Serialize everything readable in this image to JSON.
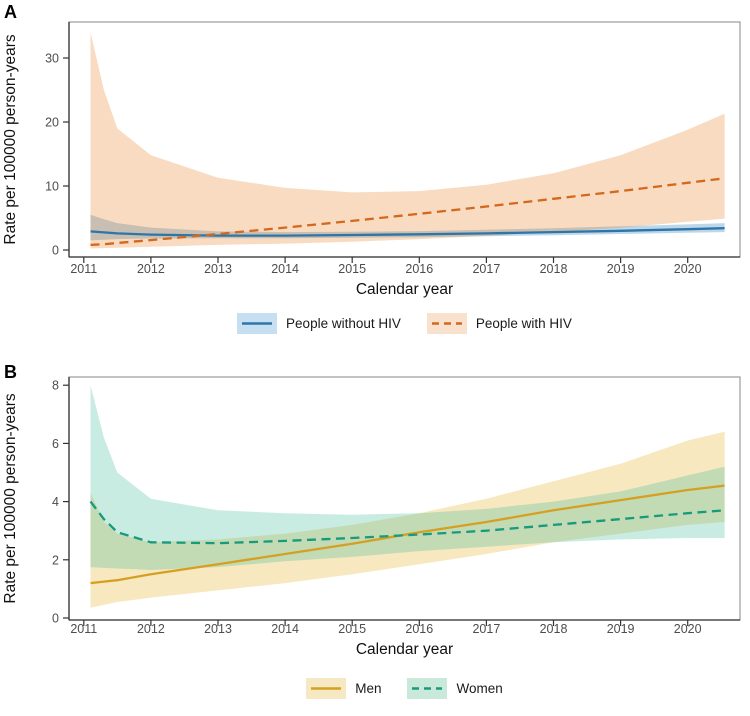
{
  "chart_data": [
    {
      "type": "line",
      "label": "A",
      "xlabel": "Calendar year",
      "ylabel": "Rate per 100000 person-years",
      "xlim": [
        2011,
        2020.6
      ],
      "ylim": [
        0,
        35
      ],
      "xticks": [
        2011,
        2012,
        2013,
        2014,
        2015,
        2016,
        2017,
        2018,
        2019,
        2020
      ],
      "yticks": [
        0,
        10,
        20,
        30
      ],
      "grid": false,
      "legend_position": "bottom",
      "x": [
        2011.1,
        2011.3,
        2011.5,
        2012,
        2013,
        2014,
        2015,
        2016,
        2017,
        2018,
        2019,
        2020,
        2020.55
      ],
      "series": [
        {
          "name": "People without HIV",
          "line_style": "solid",
          "color": "#2e75a8",
          "band_color": "rgba(49,130,189,0.32)",
          "band_legend": "#c6e0f1",
          "values": [
            2.9,
            2.75,
            2.6,
            2.4,
            2.25,
            2.25,
            2.35,
            2.45,
            2.6,
            2.8,
            3.0,
            3.25,
            3.4
          ],
          "lower": [
            1.5,
            1.6,
            1.7,
            1.8,
            1.85,
            1.85,
            1.9,
            2.0,
            2.15,
            2.3,
            2.5,
            2.7,
            2.8
          ],
          "upper": [
            5.5,
            4.8,
            4.2,
            3.5,
            2.9,
            2.8,
            2.85,
            2.95,
            3.15,
            3.4,
            3.7,
            4.0,
            4.2
          ]
        },
        {
          "name": "People with HIV",
          "line_style": "dashed",
          "color": "#d2691e",
          "band_color": "rgba(230,126,34,0.28)",
          "band_legend": "#f8e1cd",
          "values": [
            0.8,
            0.9,
            1.1,
            1.55,
            2.5,
            3.5,
            4.55,
            5.65,
            6.8,
            8.0,
            9.2,
            10.5,
            11.2
          ],
          "lower": [
            0.25,
            0.3,
            0.35,
            0.5,
            0.8,
            1.0,
            1.3,
            1.7,
            2.2,
            2.8,
            3.5,
            4.4,
            4.9
          ],
          "upper": [
            34.0,
            25.0,
            19.0,
            14.8,
            11.3,
            9.7,
            9.0,
            9.2,
            10.2,
            12.0,
            14.8,
            18.8,
            21.3
          ]
        }
      ]
    },
    {
      "type": "line",
      "label": "B",
      "xlabel": "Calendar year",
      "ylabel": "Rate per 100000 person-years",
      "xlim": [
        2011,
        2020.6
      ],
      "ylim": [
        0,
        8.3
      ],
      "xticks": [
        2011,
        2012,
        2013,
        2014,
        2015,
        2016,
        2017,
        2018,
        2019,
        2020
      ],
      "yticks": [
        0,
        2,
        4,
        6,
        8
      ],
      "grid": false,
      "legend_position": "bottom",
      "x": [
        2011.1,
        2011.3,
        2011.5,
        2012,
        2013,
        2014,
        2015,
        2016,
        2017,
        2018,
        2019,
        2020,
        2020.55
      ],
      "series": [
        {
          "name": "Men",
          "line_style": "solid",
          "color": "#d5a021",
          "band_color": "rgba(232,186,60,0.33)",
          "band_legend": "#f7e8c4",
          "values": [
            1.2,
            1.25,
            1.3,
            1.5,
            1.85,
            2.2,
            2.55,
            2.95,
            3.3,
            3.7,
            4.05,
            4.4,
            4.55
          ],
          "lower": [
            0.35,
            0.45,
            0.55,
            0.7,
            0.95,
            1.2,
            1.5,
            1.85,
            2.2,
            2.6,
            2.9,
            3.2,
            3.3
          ],
          "upper": [
            4.3,
            3.3,
            2.9,
            2.6,
            2.7,
            2.9,
            3.2,
            3.6,
            4.1,
            4.7,
            5.3,
            6.1,
            6.4
          ]
        },
        {
          "name": "Women",
          "line_style": "dashed",
          "color": "#189a7d",
          "band_color": "rgba(60,185,150,0.28)",
          "band_legend": "#c9e9db",
          "values": [
            4.0,
            3.4,
            2.95,
            2.6,
            2.57,
            2.65,
            2.75,
            2.87,
            3.0,
            3.2,
            3.4,
            3.6,
            3.7
          ],
          "lower": [
            1.75,
            1.72,
            1.7,
            1.65,
            1.75,
            1.95,
            2.1,
            2.3,
            2.45,
            2.6,
            2.7,
            2.75,
            2.75
          ],
          "upper": [
            8.0,
            6.2,
            5.0,
            4.1,
            3.7,
            3.6,
            3.55,
            3.6,
            3.75,
            4.0,
            4.35,
            4.9,
            5.2
          ]
        }
      ]
    }
  ]
}
